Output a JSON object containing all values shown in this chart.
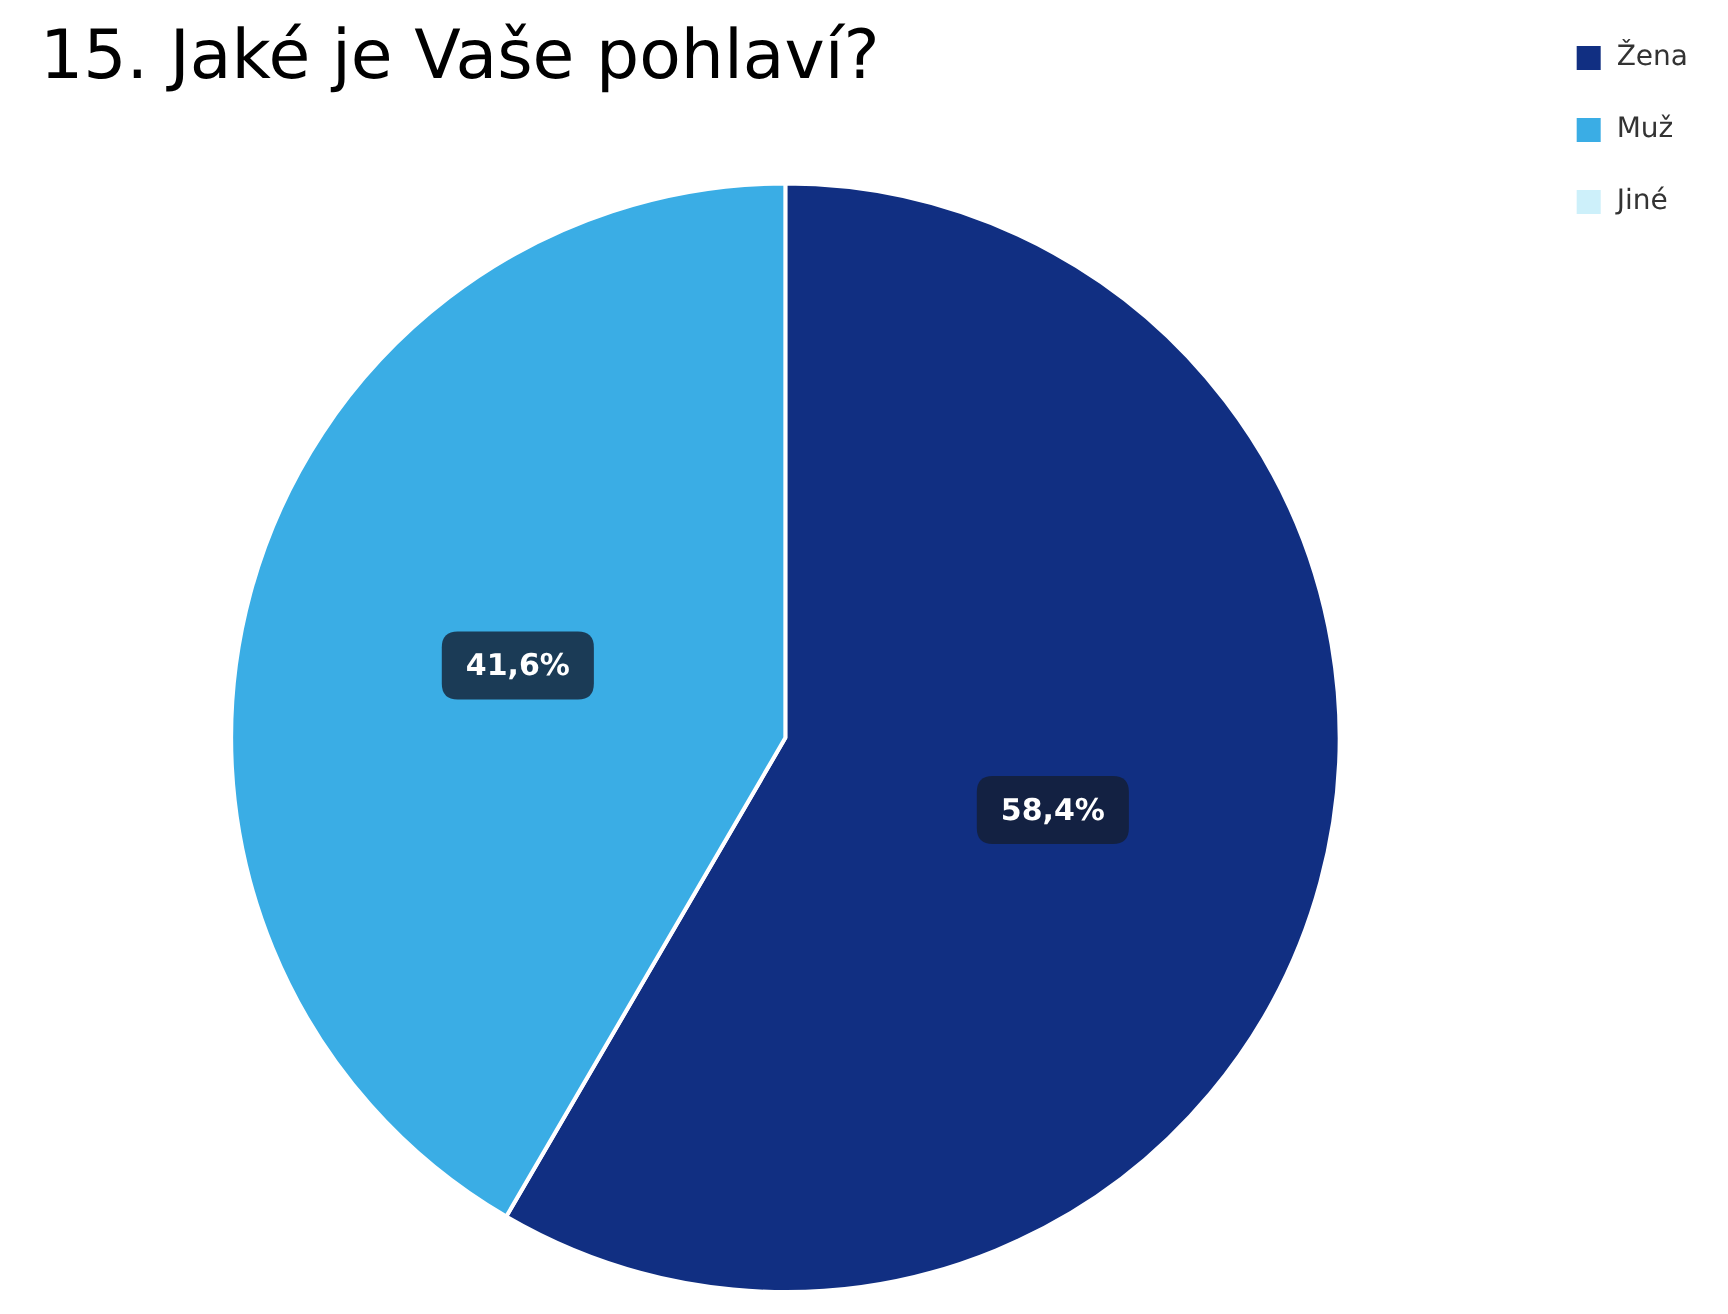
{
  "chart_data": {
    "type": "pie",
    "title": "15. Jaké je Vaše pohlaví?",
    "categories": [
      "Žena",
      "Muž",
      "Jiné"
    ],
    "values": [
      58.4,
      41.6,
      0
    ],
    "colors": [
      "#112f82",
      "#3aade5",
      "#cdf0fa"
    ],
    "value_labels": [
      "58,4%",
      "41,6%",
      null
    ],
    "legend": "top right"
  }
}
